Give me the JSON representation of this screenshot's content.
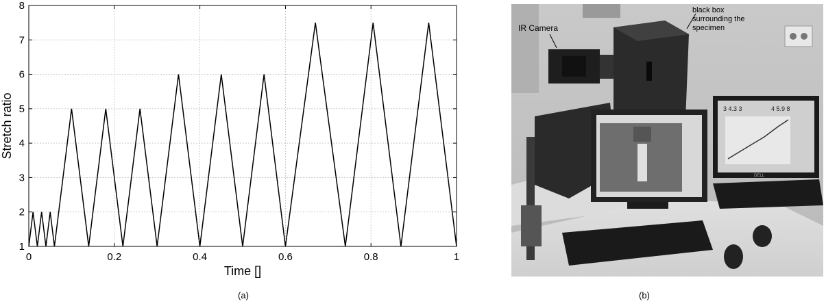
{
  "panel_a": {
    "caption": "(a)"
  },
  "panel_b": {
    "caption": "(b)",
    "annotations": {
      "camera": "IR Camera",
      "box_line1": "black box",
      "box_line2": "surrounding the",
      "box_line3": "specimen"
    },
    "screen_left_readout": "3 4.3 3",
    "screen_right_readout": "4 5.9 8",
    "monitor_brand": "DELL"
  },
  "chart_data": {
    "type": "line",
    "xlabel": "Time []",
    "ylabel": "Stretch ratio",
    "xlim": [
      0,
      1
    ],
    "ylim": [
      1,
      8
    ],
    "xticks": [
      0,
      0.2,
      0.4,
      0.6,
      0.8,
      1
    ],
    "xtick_labels": [
      "0",
      "0.2",
      "0.4",
      "0.6",
      "0.8",
      "1"
    ],
    "yticks": [
      1,
      2,
      3,
      4,
      5,
      6,
      7,
      8
    ],
    "ytick_labels": [
      "1",
      "2",
      "3",
      "4",
      "5",
      "6",
      "7",
      "8"
    ],
    "grid": true,
    "series": [
      {
        "color": "#000000",
        "x": [
          0,
          0.01,
          0.02,
          0.03,
          0.04,
          0.05,
          0.06,
          0.1,
          0.14,
          0.18,
          0.22,
          0.26,
          0.3,
          0.35,
          0.4,
          0.45,
          0.5,
          0.55,
          0.6,
          0.67,
          0.74,
          0.805,
          0.87,
          0.935,
          1.0
        ],
        "y": [
          1,
          2,
          1,
          2,
          1,
          2,
          1,
          5,
          1,
          5,
          1,
          5,
          1,
          6,
          1,
          6,
          1,
          6,
          1,
          7.5,
          1,
          7.5,
          1,
          7.5,
          1
        ]
      }
    ]
  }
}
